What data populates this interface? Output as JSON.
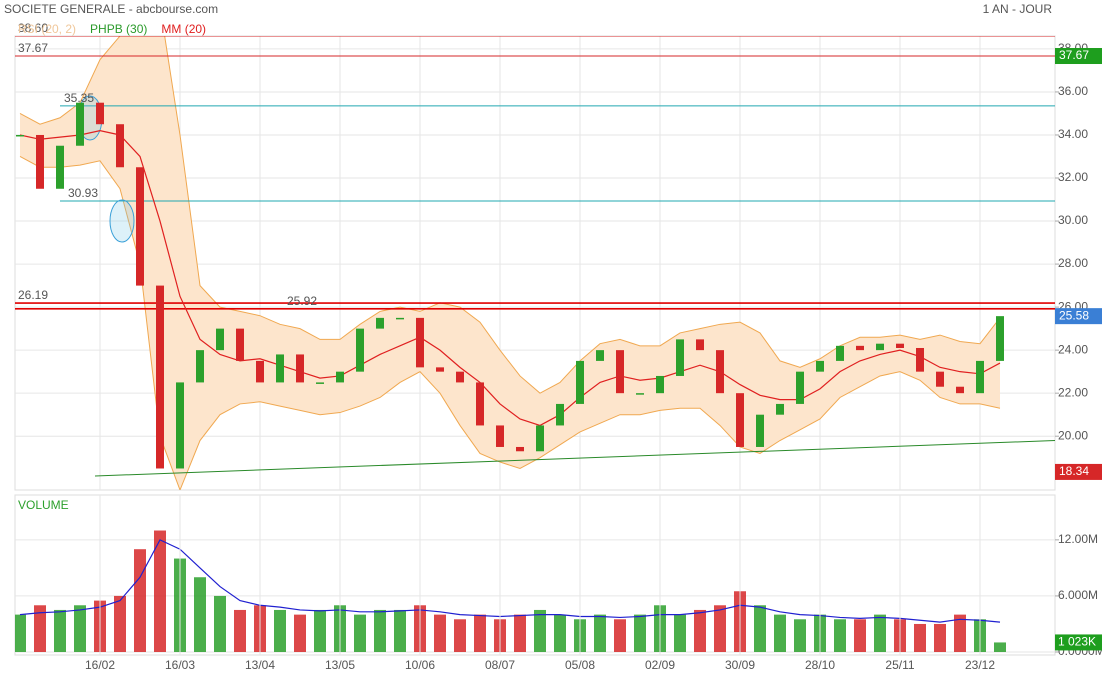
{
  "header": {
    "title": "SOCIETE GENERALE - abcbourse.com",
    "period": "1 AN - JOUR"
  },
  "chart_data": [
    {
      "type": "candlestick",
      "indicators": [
        {
          "name": "RSI (20, 2)",
          "color": "#f0c79a"
        }
      ],
      "categories": [
        null,
        null,
        null,
        null,
        "16/02",
        null,
        null,
        null,
        "16/03",
        null,
        null,
        null,
        "13/04",
        null,
        null,
        null,
        "13/05",
        null,
        null,
        null,
        "10/06",
        null,
        null,
        null,
        "08/07",
        null,
        null,
        null,
        "05/08",
        null,
        null,
        null,
        "02/09",
        null,
        null,
        null,
        "30/09",
        null,
        null,
        null,
        "28/10",
        null,
        null,
        null,
        "25/11",
        null,
        null,
        null,
        "23/12",
        null
      ],
      "close": [
        34,
        31.5,
        33.5,
        35.5,
        34.5,
        32.5,
        27,
        18.5,
        22.5,
        24,
        25,
        23.5,
        22.5,
        23.8,
        22.5,
        22.5,
        23,
        25,
        25.5,
        25.5,
        23.2,
        23,
        22.5,
        20.5,
        19.5,
        19.3,
        20.5,
        21.5,
        23.5,
        24,
        22,
        22,
        22.8,
        24.5,
        24,
        22,
        19.5,
        21,
        21.5,
        23,
        23.5,
        24.2,
        24,
        24.3,
        24.1,
        23,
        22.3,
        22,
        23.5,
        25.58
      ],
      "up_color": "#2ca02c",
      "down_color": "#d62728",
      "ma": {
        "name": "MM (20)",
        "color": "#e02020",
        "values": [
          34,
          33.8,
          33.9,
          34,
          34.2,
          34,
          33,
          30,
          26.5,
          24.5,
          23.8,
          23.5,
          23.6,
          23.3,
          23,
          22.7,
          22.8,
          23.3,
          23.8,
          24.2,
          24.6,
          24,
          23.2,
          22.5,
          21.5,
          20.8,
          20.5,
          21,
          21.8,
          22.5,
          22.8,
          22.6,
          22.7,
          23,
          23.3,
          23,
          22.4,
          21.9,
          21.7,
          21.7,
          22.2,
          23,
          23.5,
          23.8,
          24,
          23.7,
          23.2,
          23,
          22.9,
          23.4
        ]
      },
      "bands": {
        "name": "PHPB (30)",
        "legend_color": "#2a9a2a",
        "color": "#f0a850",
        "fill": "#fde5cc",
        "upper": [
          35,
          34.5,
          34.8,
          35.5,
          37.5,
          38.6,
          40,
          40,
          34,
          27,
          26,
          25.8,
          25.6,
          25.2,
          25,
          24.5,
          24.5,
          25.2,
          25.8,
          26,
          25.8,
          26.2,
          26,
          25.3,
          24,
          22.8,
          22,
          22.5,
          23.5,
          24.3,
          24.5,
          24.2,
          24.2,
          24.8,
          25,
          25.2,
          25.3,
          24.8,
          23.5,
          23.2,
          23.6,
          24.2,
          24.6,
          24.6,
          24.7,
          24.5,
          24.7,
          24.4,
          24.3,
          25.5
        ],
        "lower": [
          33,
          32.5,
          32.5,
          32.6,
          32.8,
          31.5,
          28,
          20,
          17.5,
          19.8,
          21,
          21.5,
          21.6,
          21.4,
          21.2,
          21,
          21.1,
          21.4,
          21.8,
          22.5,
          23,
          22,
          20.5,
          19.2,
          18.8,
          18.5,
          19,
          19.6,
          20.2,
          20.6,
          21,
          21,
          21.2,
          21.3,
          21.3,
          20.5,
          19.5,
          19.2,
          19.8,
          20.3,
          20.8,
          21.8,
          22.3,
          22.8,
          23,
          22.6,
          21.8,
          21.5,
          21.5,
          21.3
        ]
      },
      "ylim": [
        17.5,
        38.6
      ],
      "yticks": [
        {
          "value": 20,
          "label": "20.00"
        },
        {
          "value": 22,
          "label": "22.00"
        },
        {
          "value": 24,
          "label": "24.00"
        },
        {
          "value": 26,
          "label": "26.00"
        },
        {
          "value": 28,
          "label": "28.00"
        },
        {
          "value": 30,
          "label": "30.00"
        },
        {
          "value": 32,
          "label": "32.00"
        },
        {
          "value": 34,
          "label": "34.00"
        },
        {
          "value": 36,
          "label": "36.00"
        },
        {
          "value": 38,
          "label": "38.00"
        }
      ],
      "levels": [
        {
          "value": 38.6,
          "label": "38.60",
          "color": "#d62728"
        },
        {
          "value": 37.67,
          "label": "37.67",
          "color": "#d62728"
        },
        {
          "value": 35.35,
          "label": "35.35",
          "color": "#20a8b0"
        },
        {
          "value": 30.93,
          "label": "30.93",
          "color": "#20a8b0"
        },
        {
          "value": 26.19,
          "label": "26.19",
          "color": "#e00000"
        },
        {
          "value": 25.92,
          "label": "25.92",
          "color": "#e00000"
        }
      ],
      "price_tags": [
        {
          "value": 37.67,
          "label": "37.67",
          "color": "#1e9e1e"
        },
        {
          "value": 25.58,
          "label": "25.58",
          "color": "#3a7fd5"
        },
        {
          "value": 18.34,
          "label": "18.34",
          "color": "#d62728"
        }
      ],
      "trendline": {
        "values": [
          18.15,
          19.8
        ],
        "color": "#2a8a2a"
      },
      "grid": true
    },
    {
      "type": "volume-bar",
      "title": "VOLUME",
      "values": [
        4,
        5,
        4.5,
        5,
        5.5,
        6,
        11,
        13,
        10,
        8,
        6,
        4.5,
        5,
        4.5,
        4,
        4.5,
        5,
        4,
        4.5,
        4.5,
        5,
        4,
        3.5,
        4,
        3.5,
        4,
        4.5,
        4,
        3.5,
        4,
        3.5,
        4,
        5,
        4,
        4.5,
        5,
        6.5,
        5,
        4,
        3.5,
        4,
        3.5,
        3.5,
        4,
        3.5,
        3,
        3,
        4,
        3.5,
        1.023
      ],
      "ma_values": [
        4,
        4.2,
        4.3,
        4.5,
        4.8,
        5.5,
        8,
        12,
        11,
        9,
        7,
        5.5,
        5,
        4.8,
        4.5,
        4.4,
        4.5,
        4.3,
        4.3,
        4.4,
        4.5,
        4.3,
        4,
        3.9,
        3.8,
        3.9,
        4,
        4,
        3.8,
        3.8,
        3.7,
        3.8,
        4,
        4,
        4.2,
        4.5,
        5,
        4.8,
        4.3,
        4,
        3.9,
        3.7,
        3.6,
        3.7,
        3.6,
        3.4,
        3.2,
        3.5,
        3.4,
        3.2
      ],
      "ma_color": "#2020d0",
      "ylim": [
        0,
        16.8
      ],
      "yticks": [
        {
          "value": 0,
          "label": "0.0000M"
        },
        {
          "value": 6,
          "label": "6.000M"
        },
        {
          "value": 12,
          "label": "12.00M"
        }
      ],
      "last": {
        "value": 1.023,
        "label": "1 023K",
        "color": "#1e9e1e"
      },
      "grid": true
    }
  ]
}
